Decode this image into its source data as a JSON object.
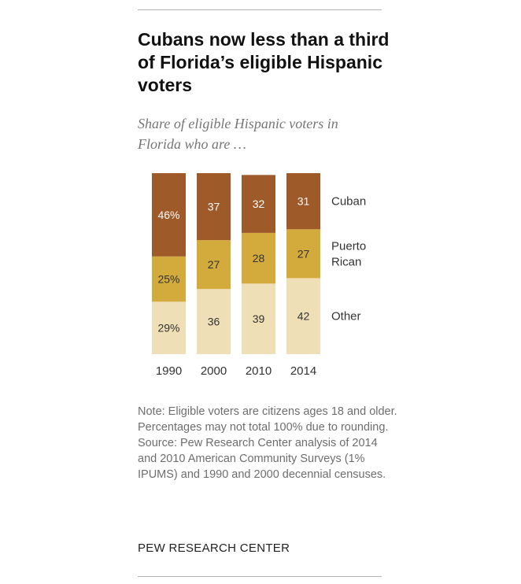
{
  "title": "Cubans now less than a third of Florida’s eligible Hispanic voters",
  "subtitle": "Share of eligible Hispanic voters in Florida who are …",
  "chart_data": {
    "type": "bar",
    "stacked": true,
    "categories": [
      "1990",
      "2000",
      "2010",
      "2014"
    ],
    "series": [
      {
        "name": "Cuban",
        "values": [
          46,
          37,
          32,
          31
        ],
        "labels": [
          "46%",
          "37",
          "32",
          "31"
        ],
        "color": "#9f5a2a"
      },
      {
        "name": "Puerto Rican",
        "values": [
          25,
          27,
          28,
          27
        ],
        "labels": [
          "25%",
          "27",
          "28",
          "27"
        ],
        "color": "#d3aa3c"
      },
      {
        "name": "Other",
        "values": [
          29,
          36,
          39,
          42
        ],
        "labels": [
          "29%",
          "36",
          "39",
          "42"
        ],
        "color": "#efdfb6"
      }
    ],
    "legend_position": "right"
  },
  "note": "Note: Eligible voters are citizens ages 18 and older. Percentages may not total 100% due to rounding.",
  "source": "Source: Pew Research Center analysis of 2014 and 2010 American Community Surveys (1% IPUMS) and 1990 and 2000 decennial censuses.",
  "publisher": "PEW RESEARCH CENTER"
}
